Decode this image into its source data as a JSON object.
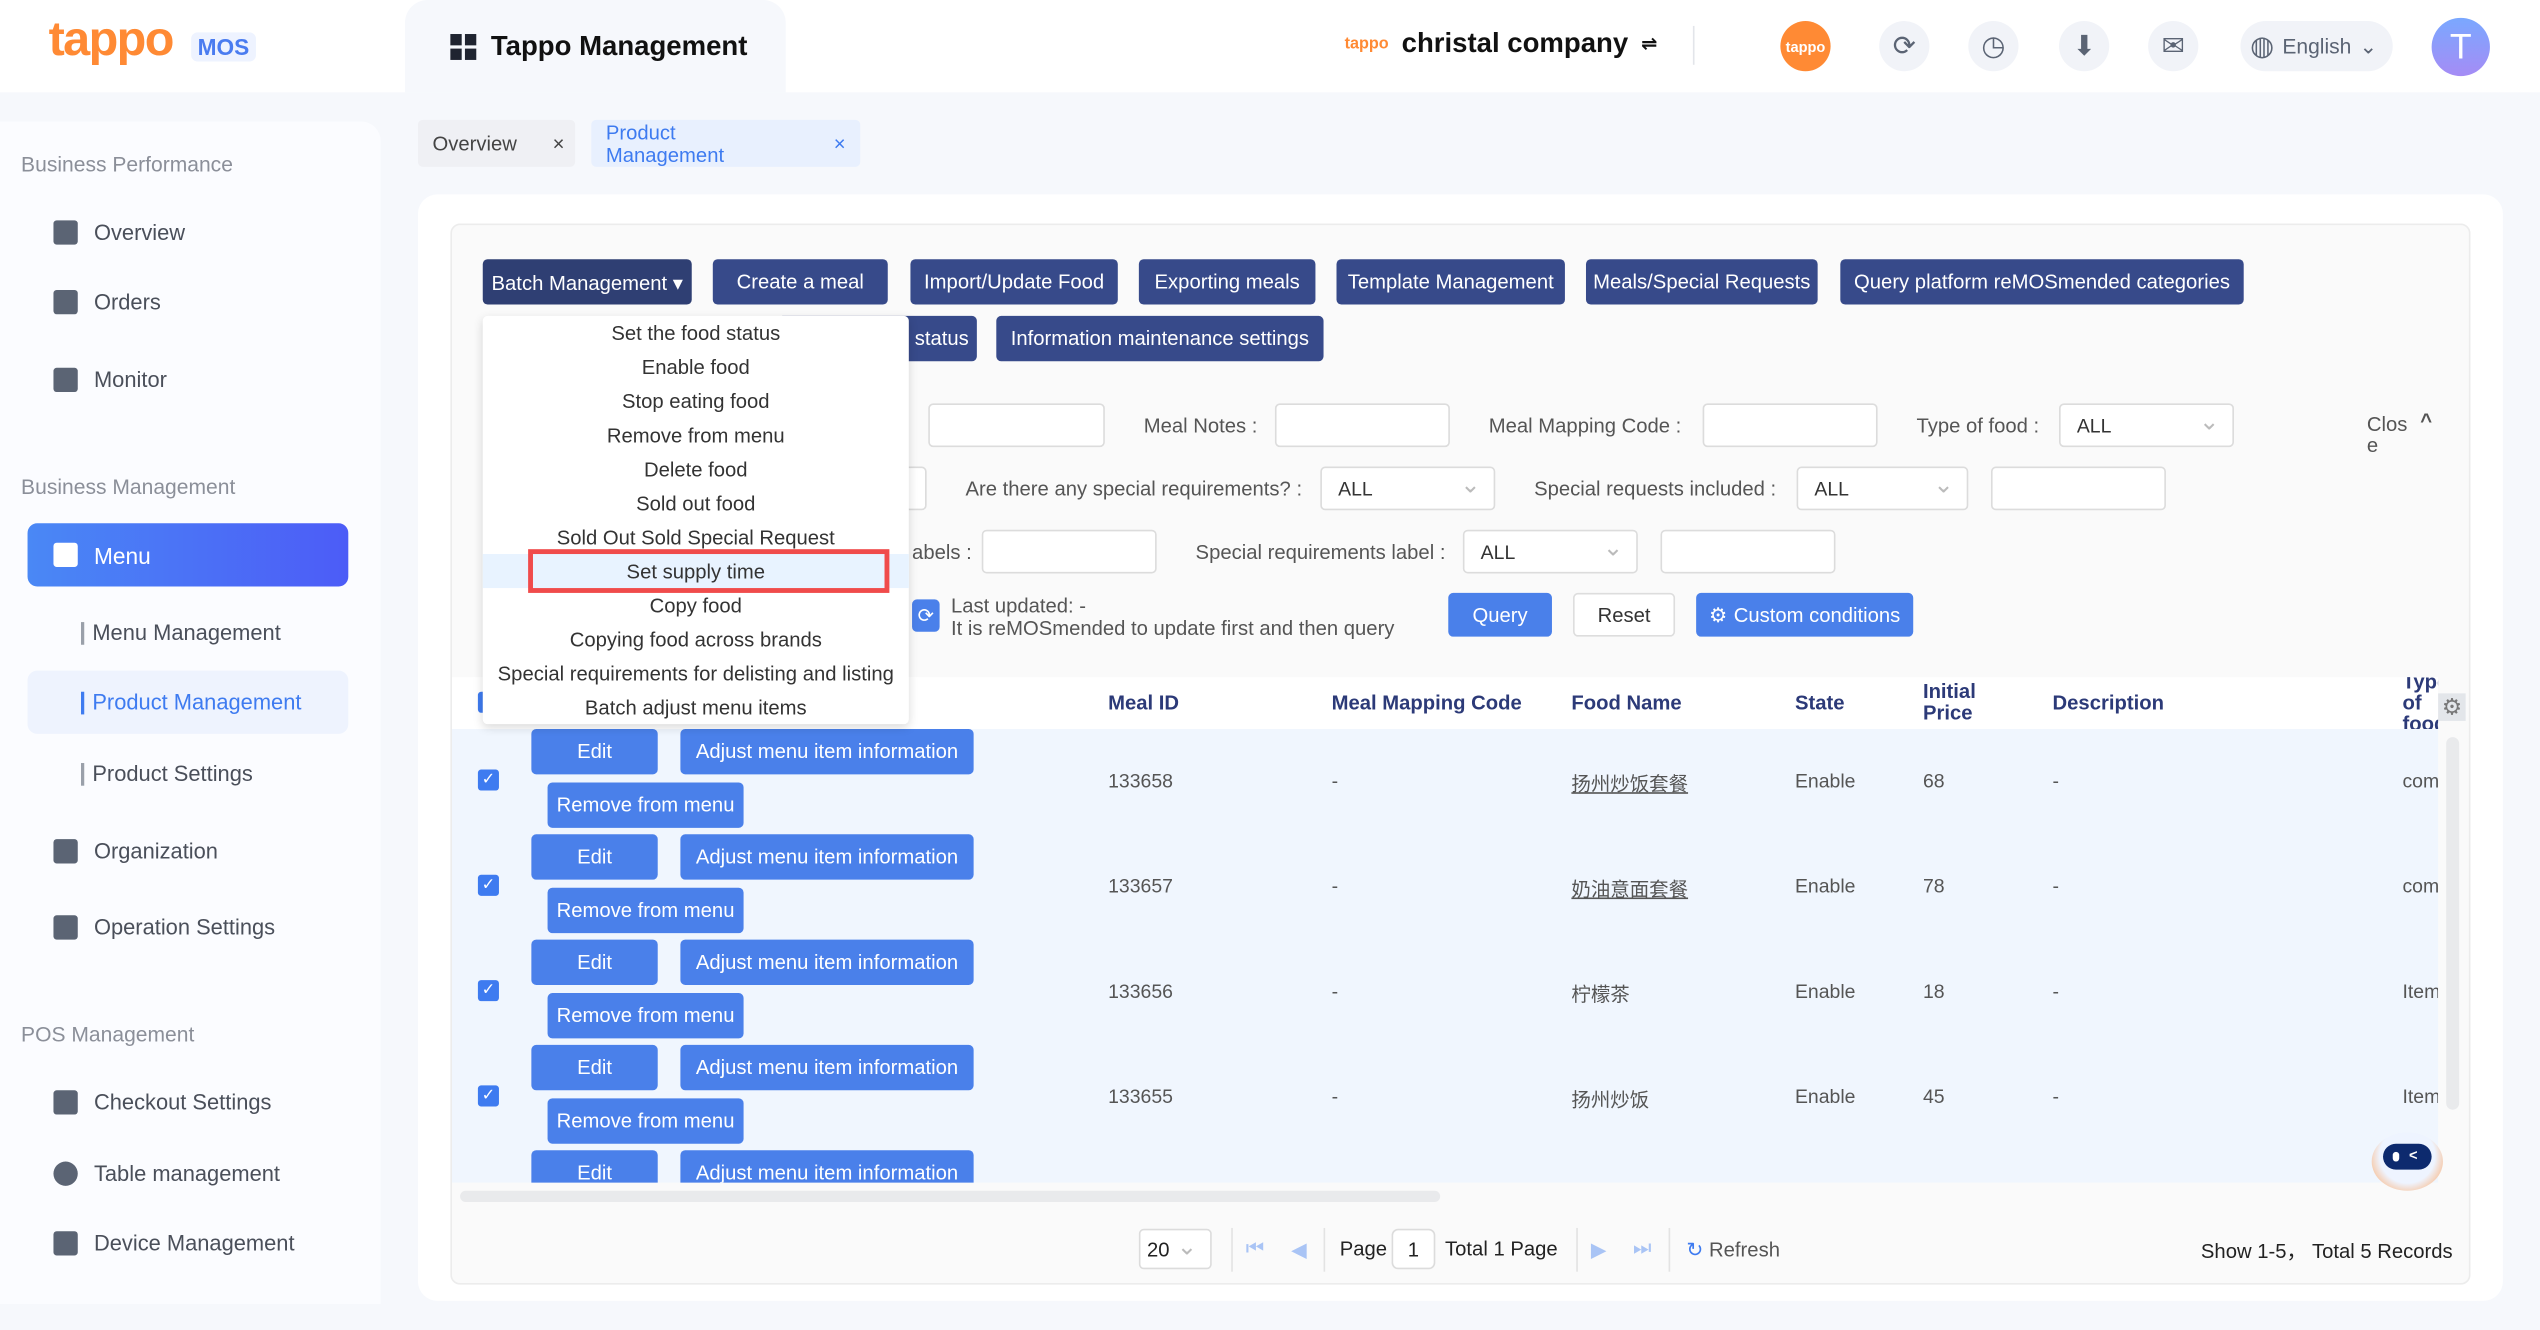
{
  "header": {
    "logo": "tappo",
    "logo_suffix": "MOS",
    "app_tab": "Tappo Management",
    "company_brand": "tappo",
    "company": "christal company",
    "language": "English",
    "avatar_letter": "T",
    "icons": [
      "tappo-app-icon",
      "sync-icon",
      "history-icon",
      "download-icon",
      "message-icon"
    ]
  },
  "sidebar": {
    "sections": [
      {
        "title": "Business Performance",
        "items": [
          "Overview",
          "Orders",
          "Monitor"
        ]
      },
      {
        "title": "Business Management",
        "active": "Menu",
        "subitems": [
          "Menu Management",
          "Product Management",
          "Product Settings"
        ],
        "items": [
          "Organization",
          "Operation Settings"
        ]
      },
      {
        "title": "POS Management",
        "items": [
          "Checkout Settings",
          "Table management",
          "Device Management"
        ]
      }
    ]
  },
  "page_tabs": [
    {
      "label": "Overview",
      "close": "×"
    },
    {
      "label": "Product Management",
      "close": "×",
      "active": true
    }
  ],
  "toolbar": {
    "row1": [
      "Batch Management ▾",
      "Create a meal",
      "Import/Update Food",
      "Exporting meals",
      "Template Management",
      "Meals/Special Requests",
      "Query platform reMOSmended categories"
    ],
    "row2": [
      "status",
      "Information maintenance settings"
    ]
  },
  "filters": {
    "meal_notes": "Meal Notes :",
    "meal_mapping_code": "Meal Mapping Code :",
    "type_of_food": "Type of food :",
    "type_of_food_value": "ALL",
    "special_req": "Are there any special requirements? :",
    "special_req_value": "ALL",
    "special_included": "Special requests included :",
    "special_included_value": "ALL",
    "labels_partial": "abels :",
    "special_label": "Special requirements label :",
    "special_label_value": "ALL",
    "close": "Clos e",
    "last_updated": "Last updated: -",
    "hint": "It is reMOSmended to update first and then query",
    "query": "Query",
    "reset": "Reset",
    "custom": "Custom conditions"
  },
  "batch_menu": {
    "items": [
      "Set the food status",
      "Enable food",
      "Stop eating food",
      "Remove from menu",
      "Delete food",
      "Sold out food",
      "Sold Out Sold Special Request",
      "Set supply time",
      "Copy food",
      "Copying food across brands",
      "Special requirements for delisting and listing",
      "Batch adjust menu items"
    ],
    "highlighted": "Set supply time"
  },
  "table": {
    "columns": [
      "Meal ID",
      "Meal Mapping Code",
      "Food Name",
      "State",
      "Initial Price",
      "Description",
      "Type of food"
    ],
    "actions": {
      "edit": "Edit",
      "adjust": "Adjust menu item information",
      "remove": "Remove from menu"
    },
    "rows": [
      {
        "checked": true,
        "meal_id": "133658",
        "mapping": "-",
        "name": "扬州炒饭套餐",
        "state": "Enable",
        "price": "68",
        "desc": "-",
        "type": "com"
      },
      {
        "checked": true,
        "meal_id": "133657",
        "mapping": "-",
        "name": "奶油意面套餐",
        "state": "Enable",
        "price": "78",
        "desc": "-",
        "type": "com"
      },
      {
        "checked": true,
        "meal_id": "133656",
        "mapping": "-",
        "name": "柠檬茶",
        "state": "Enable",
        "price": "18",
        "desc": "-",
        "type": "Item"
      },
      {
        "checked": true,
        "meal_id": "133655",
        "mapping": "-",
        "name": "扬州炒饭",
        "state": "Enable",
        "price": "45",
        "desc": "-",
        "type": "Item"
      }
    ]
  },
  "pagination": {
    "page_size": "20",
    "page_label": "Page",
    "page": "1",
    "total_pages": "Total 1 Page",
    "refresh": "Refresh",
    "summary": "Show 1-5， Total 5 Records"
  },
  "colors": {
    "primary": "#4a80ea",
    "dark_button": "#374a8a",
    "brand": "#ff8a34",
    "highlight_box": "#f04b4b"
  }
}
